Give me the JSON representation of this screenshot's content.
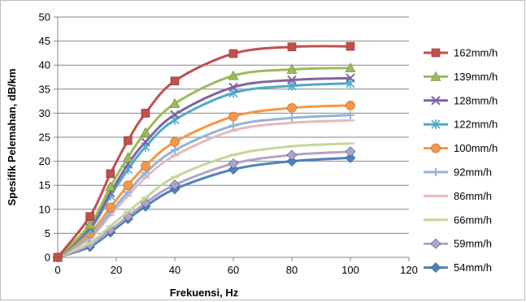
{
  "chart_data": {
    "type": "line",
    "title": "",
    "xlabel": "Frekuensi, Hz",
    "ylabel": "Spesifik Pelemahan, dB/km",
    "xlim": [
      0,
      120
    ],
    "ylim": [
      0,
      50
    ],
    "xticks": [
      "0",
      "20",
      "40",
      "60",
      "80",
      "100",
      "120"
    ],
    "yticks": [
      "0",
      "5",
      "10",
      "15",
      "20",
      "25",
      "30",
      "35",
      "40",
      "45",
      "50"
    ],
    "grid": "horizontal",
    "legend": "right",
    "x": [
      0,
      11,
      18,
      24,
      30,
      40,
      60,
      80,
      100
    ],
    "series": [
      {
        "name": "162mm/h",
        "color": "#c0504d",
        "marker": "square",
        "values": [
          0,
          8.5,
          17.4,
          24.3,
          30.0,
          36.7,
          42.4,
          43.8,
          43.9
        ]
      },
      {
        "name": "139mm/h",
        "color": "#9bbb59",
        "marker": "triangle",
        "values": [
          0,
          6.8,
          14.7,
          20.8,
          26.0,
          32.0,
          37.8,
          39.1,
          39.4
        ]
      },
      {
        "name": "128mm/h",
        "color": "#8064a2",
        "marker": "x",
        "values": [
          0,
          6.2,
          13.4,
          19.4,
          24.0,
          29.7,
          35.4,
          36.9,
          37.3
        ]
      },
      {
        "name": "122mm/h",
        "color": "#4bacc6",
        "marker": "asterisk",
        "values": [
          0,
          5.8,
          12.8,
          18.3,
          23.0,
          28.6,
          34.2,
          35.7,
          36.2
        ]
      },
      {
        "name": "100mm/h",
        "color": "#f79646",
        "marker": "circle",
        "values": [
          0,
          5.0,
          10.4,
          15.0,
          19.0,
          24.0,
          29.3,
          31.1,
          31.6
        ]
      },
      {
        "name": "92mm/h",
        "color": "#95b3d7",
        "marker": "plus",
        "values": [
          0,
          4.3,
          9.4,
          13.6,
          17.6,
          22.3,
          27.4,
          29.0,
          29.6
        ]
      },
      {
        "name": "86mm/h",
        "color": "#e6b9b8",
        "marker": "dash",
        "values": [
          0,
          4.0,
          8.8,
          12.8,
          16.6,
          21.2,
          26.4,
          28.0,
          28.5
        ]
      },
      {
        "name": "66mm/h",
        "color": "#c3d69b",
        "marker": "dash",
        "values": [
          0,
          3.0,
          6.5,
          9.5,
          12.4,
          16.7,
          21.3,
          23.1,
          23.7
        ]
      },
      {
        "name": "59mm/h",
        "color": "#b3a2c7",
        "marker": "diamond",
        "values": [
          0,
          2.6,
          5.7,
          8.5,
          11.3,
          15.1,
          19.5,
          21.3,
          22.0
        ]
      },
      {
        "name": "54mm/h",
        "color": "#4f81bd",
        "marker": "diamond",
        "values": [
          0,
          2.2,
          5.2,
          8.0,
          10.6,
          14.2,
          18.3,
          20.0,
          20.7
        ]
      }
    ]
  }
}
